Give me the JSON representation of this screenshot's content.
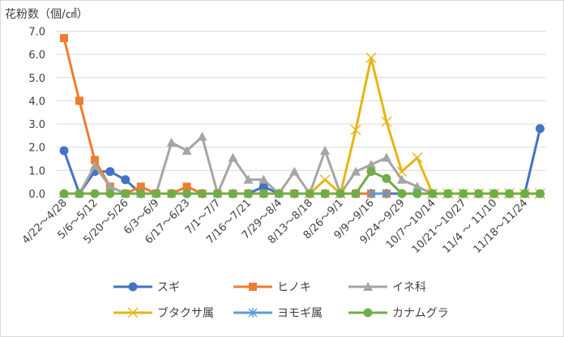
{
  "chart_data": {
    "type": "line",
    "title": "",
    "ylabel": "花粉数（個/㎠）",
    "xlabel": "",
    "ylim": [
      0,
      7
    ],
    "yticks": [
      "0.0",
      "1.0",
      "2.0",
      "3.0",
      "4.0",
      "5.0",
      "6.0",
      "7.0"
    ],
    "grid": true,
    "legend": "bottom",
    "categories": [
      "4/22～4/28",
      "",
      "5/6～5/12",
      "",
      "5/20～5/26",
      "",
      "6/3～6/9",
      "",
      "6/17～6/23",
      "",
      "7/1～7/7",
      "",
      "7/16～7/21",
      "",
      "7/29～8/4",
      "",
      "8/13～8/18",
      "",
      "8/26～9/1",
      "",
      "9/9～9/16",
      "",
      "9/24～9/29",
      "",
      "10/7～10/14",
      "",
      "10/21～10/27",
      "",
      "11/4 ～ 11/10",
      "",
      "11/18～11/24",
      ""
    ],
    "series": [
      {
        "name": "スギ",
        "color": "#4472C4",
        "marker": "circle",
        "values": [
          1.85,
          0.0,
          0.95,
          0.95,
          0.6,
          0.0,
          0.0,
          0.0,
          0.0,
          0.0,
          0.0,
          0.0,
          0.0,
          0.3,
          0.0,
          0.0,
          0.0,
          0.0,
          0.0,
          0.0,
          0.0,
          0.0,
          0.0,
          0.0,
          0.0,
          0.0,
          0.0,
          0.0,
          0.0,
          0.0,
          0.0,
          2.8
        ]
      },
      {
        "name": "ヒノキ",
        "color": "#ED7D31",
        "marker": "square",
        "values": [
          6.7,
          4.0,
          1.45,
          0.3,
          0.0,
          0.3,
          0.0,
          0.0,
          0.3,
          0.0,
          0.0,
          0.0,
          0.0,
          0.0,
          0.0,
          0.0,
          0.0,
          0.0,
          0.0,
          0.0,
          0.0,
          0.0,
          null,
          null,
          null,
          null,
          null,
          null,
          null,
          null,
          null,
          null
        ]
      },
      {
        "name": "イネ科",
        "color": "#A5A5A5",
        "marker": "triangle",
        "values": [
          0.0,
          0.0,
          1.2,
          0.3,
          0.0,
          0.0,
          0.0,
          2.2,
          1.85,
          2.45,
          0.0,
          1.55,
          0.6,
          0.6,
          0.0,
          0.95,
          0.0,
          1.85,
          0.0,
          0.95,
          1.25,
          1.55,
          0.6,
          0.3,
          0.0,
          0.0,
          0.0,
          0.0,
          0.0,
          0.0,
          0.0,
          0.0
        ]
      },
      {
        "name": "ブタクサ属",
        "color": "#E7B416",
        "marker": "x",
        "values": [
          null,
          null,
          null,
          null,
          null,
          null,
          null,
          null,
          null,
          null,
          null,
          null,
          null,
          null,
          null,
          null,
          0.0,
          0.6,
          0.0,
          2.75,
          5.85,
          3.1,
          0.95,
          1.55,
          0.0,
          0.0,
          0.0,
          0.0,
          0.0,
          0.0,
          0.0,
          0.0
        ]
      },
      {
        "name": "ヨモギ属",
        "color": "#5B9BD5",
        "marker": "asterisk",
        "values": [
          null,
          null,
          null,
          null,
          null,
          null,
          null,
          null,
          null,
          null,
          null,
          null,
          null,
          null,
          null,
          null,
          null,
          null,
          null,
          null,
          0.0,
          0.0,
          null,
          null,
          null,
          null,
          null,
          null,
          null,
          null,
          null,
          null
        ]
      },
      {
        "name": "カナムグラ",
        "color": "#70AD47",
        "marker": "circle",
        "values": [
          0.0,
          0.0,
          0.0,
          0.0,
          0.0,
          0.0,
          0.0,
          0.0,
          0.0,
          0.0,
          0.0,
          0.0,
          0.0,
          0.0,
          0.0,
          0.0,
          0.0,
          0.0,
          0.0,
          0.0,
          0.95,
          0.65,
          0.0,
          0.0,
          0.0,
          0.0,
          0.0,
          0.0,
          0.0,
          0.0,
          0.0,
          0.0
        ]
      }
    ]
  }
}
